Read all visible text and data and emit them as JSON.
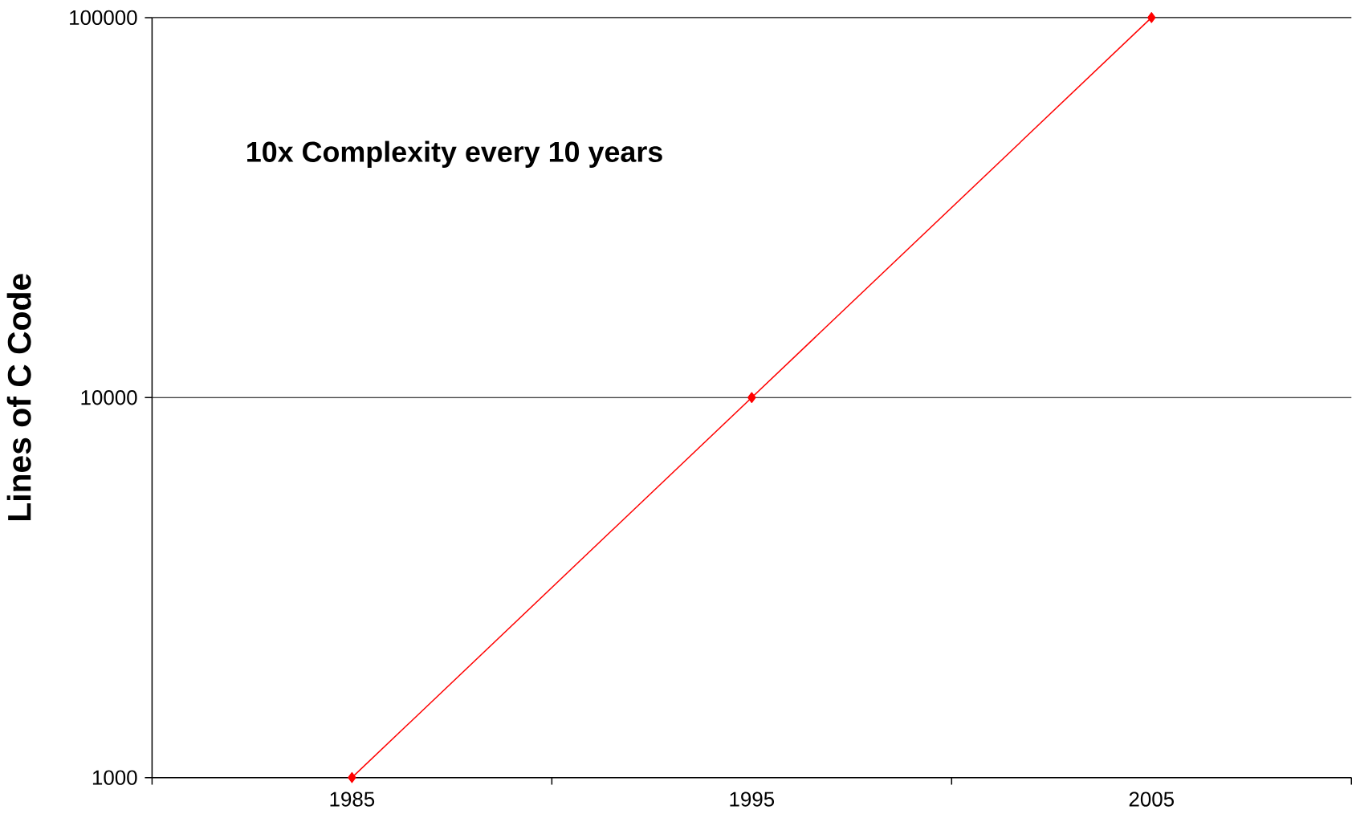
{
  "chart_data": {
    "type": "line",
    "ylabel": "Lines of C Code",
    "annotations": [
      "10x Complexity every 10 years"
    ],
    "categories": [
      "1985",
      "1995",
      "2005"
    ],
    "series": [
      {
        "color": "#ff0000",
        "values": [
          1000,
          10000,
          100000
        ]
      }
    ],
    "ylim": [
      1000,
      100000
    ],
    "yticks": [
      1000,
      10000,
      100000
    ],
    "log": "y",
    "grid": "y",
    "marker": "diamond",
    "line_style": "solid"
  }
}
